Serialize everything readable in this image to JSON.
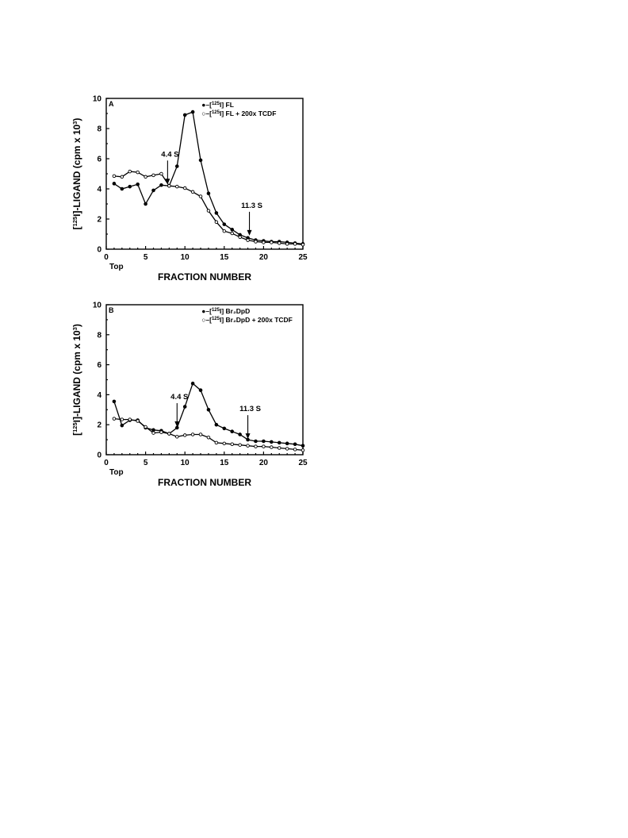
{
  "chart_data": [
    {
      "type": "line",
      "panel_label": "A",
      "xlabel": "FRACTION NUMBER",
      "ylabel": "[125I]-LIGAND (cpm x 10",
      "ylabel_sup_iso": "125",
      "ylabel_sup_exp": "3",
      "x_extra_label": "Top",
      "xlim": [
        0,
        25
      ],
      "ylim": [
        0,
        10
      ],
      "xticks": [
        0,
        5,
        10,
        15,
        20,
        25
      ],
      "yticks": [
        0,
        2,
        4,
        6,
        8,
        10
      ],
      "grid": false,
      "legend_position": "top-right",
      "series": [
        {
          "name": "[125I] FL",
          "legend_prefix": "●–[",
          "legend_sup": "125",
          "legend_suffix": "I] FL",
          "marker": "filled",
          "x": [
            1,
            2,
            3,
            4,
            5,
            6,
            7,
            8,
            9,
            10,
            11,
            12,
            13,
            14,
            15,
            16,
            17,
            18,
            19,
            20,
            21,
            22,
            23,
            24,
            25
          ],
          "values": [
            4.35,
            4.0,
            4.15,
            4.3,
            3.0,
            3.9,
            4.25,
            4.2,
            5.5,
            8.9,
            9.1,
            5.9,
            3.7,
            2.4,
            1.65,
            1.3,
            0.95,
            0.75,
            0.6,
            0.55,
            0.5,
            0.5,
            0.45,
            0.4,
            0.35
          ]
        },
        {
          "name": "[125I] FL + 200x TCDF",
          "legend_prefix": "○–[",
          "legend_sup": "125",
          "legend_suffix": "I] FL + 200x TCDF",
          "marker": "open",
          "x": [
            1,
            2,
            3,
            4,
            5,
            6,
            7,
            8,
            9,
            10,
            11,
            12,
            13,
            14,
            15,
            16,
            17,
            18,
            19,
            20,
            21,
            22,
            23,
            24,
            25
          ],
          "values": [
            4.85,
            4.8,
            5.15,
            5.1,
            4.8,
            4.9,
            5.0,
            4.2,
            4.15,
            4.05,
            3.8,
            3.5,
            2.55,
            1.8,
            1.2,
            1.05,
            0.8,
            0.6,
            0.5,
            0.45,
            0.45,
            0.4,
            0.35,
            0.35,
            0.3
          ]
        }
      ],
      "annotations": [
        {
          "text": "4.4 S",
          "x": 7.8,
          "y": 4.3
        },
        {
          "text": "11.3 S",
          "x": 18.2,
          "y": 0.9
        }
      ]
    },
    {
      "type": "line",
      "panel_label": "B",
      "xlabel": "FRACTION NUMBER",
      "ylabel": "[125I]-LIGAND (cpm x 10",
      "ylabel_sup_iso": "125",
      "ylabel_sup_exp": "3",
      "x_extra_label": "Top",
      "xlim": [
        0,
        25
      ],
      "ylim": [
        0,
        10
      ],
      "xticks": [
        0,
        5,
        10,
        15,
        20,
        25
      ],
      "yticks": [
        0,
        2,
        4,
        6,
        8,
        10
      ],
      "grid": false,
      "legend_position": "top-right",
      "series": [
        {
          "name": "[125I] Br2DpD",
          "legend_prefix": "●–[",
          "legend_sup": "125",
          "legend_suffix": "I] Br₂DpD",
          "marker": "filled",
          "x": [
            1,
            2,
            3,
            4,
            5,
            6,
            7,
            8,
            9,
            10,
            11,
            12,
            13,
            14,
            15,
            16,
            17,
            18,
            19,
            20,
            21,
            22,
            23,
            24,
            25
          ],
          "values": [
            3.55,
            1.95,
            2.3,
            2.3,
            1.8,
            1.65,
            1.6,
            1.4,
            1.8,
            3.2,
            4.75,
            4.3,
            3.0,
            2.0,
            1.75,
            1.55,
            1.35,
            1.0,
            0.9,
            0.9,
            0.85,
            0.8,
            0.75,
            0.7,
            0.6
          ]
        },
        {
          "name": "[125I] Br2DpD + 200x TCDF",
          "legend_prefix": "○–[",
          "legend_sup": "125",
          "legend_suffix": "I] Br₂DpD + 200x TCDF",
          "marker": "open",
          "x": [
            1,
            2,
            3,
            4,
            5,
            6,
            7,
            8,
            9,
            10,
            11,
            12,
            13,
            14,
            15,
            16,
            17,
            18,
            19,
            20,
            21,
            22,
            23,
            24,
            25
          ],
          "values": [
            2.4,
            2.35,
            2.35,
            2.25,
            1.85,
            1.45,
            1.5,
            1.4,
            1.2,
            1.3,
            1.35,
            1.35,
            1.15,
            0.8,
            0.75,
            0.7,
            0.65,
            0.6,
            0.55,
            0.55,
            0.5,
            0.45,
            0.4,
            0.35,
            0.3
          ]
        }
      ],
      "annotations": [
        {
          "text": "4.4 S",
          "x": 9.0,
          "y": 1.85
        },
        {
          "text": "11.3 S",
          "x": 18.0,
          "y": 1.05
        }
      ]
    }
  ]
}
